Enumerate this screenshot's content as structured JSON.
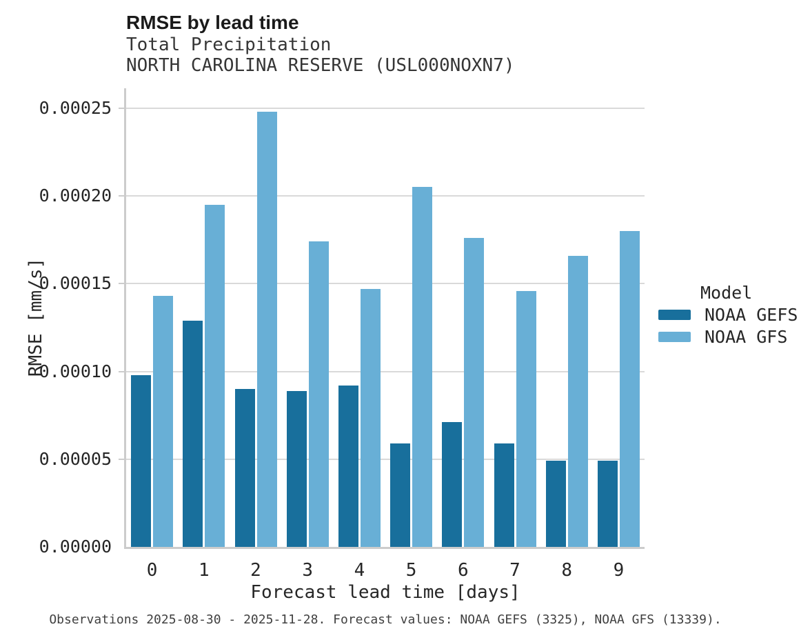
{
  "header": {
    "title": "RMSE by lead time",
    "subtitle1": "Total Precipitation",
    "subtitle2": "NORTH CAROLINA RESERVE (USL000NOXN7)"
  },
  "chart_data": {
    "type": "bar",
    "title": "RMSE by lead time",
    "subtitle": [
      "Total Precipitation",
      "NORTH CAROLINA RESERVE (USL000NOXN7)"
    ],
    "categories": [
      "0",
      "1",
      "2",
      "3",
      "4",
      "5",
      "6",
      "7",
      "8",
      "9"
    ],
    "series": [
      {
        "name": "NOAA GEFS",
        "color": "#186f9c",
        "values": [
          9.8e-05,
          0.000129,
          9e-05,
          8.9e-05,
          9.2e-05,
          5.9e-05,
          7.1e-05,
          5.9e-05,
          4.9e-05,
          4.9e-05
        ]
      },
      {
        "name": "NOAA GFS",
        "color": "#68afd6",
        "values": [
          0.000143,
          0.000195,
          0.000248,
          0.000174,
          0.000147,
          0.000205,
          0.000176,
          0.000146,
          0.000166,
          0.00018
        ]
      }
    ],
    "xlabel": "Forecast lead time [days]",
    "ylabel": "RMSE [mm/s]",
    "ylim": [
      0,
      0.0002614
    ],
    "yticks": [
      0.0,
      5e-05,
      0.0001,
      0.00015,
      0.0002,
      0.00025
    ],
    "ytick_labels": [
      "0.00000",
      "0.00005",
      "0.00010",
      "0.00015",
      "0.00020",
      "0.00025"
    ],
    "legend_title": "Model",
    "legend_position": "right",
    "grid": true
  },
  "colors": {
    "gridline": "#d9d9d9",
    "axis": "#cccccc",
    "text": "#262626",
    "footer_text": "#404040"
  },
  "footer": {
    "note": "Observations 2025-08-30 - 2025-11-28. Forecast values: NOAA GEFS (3325), NOAA GFS (13339)."
  }
}
